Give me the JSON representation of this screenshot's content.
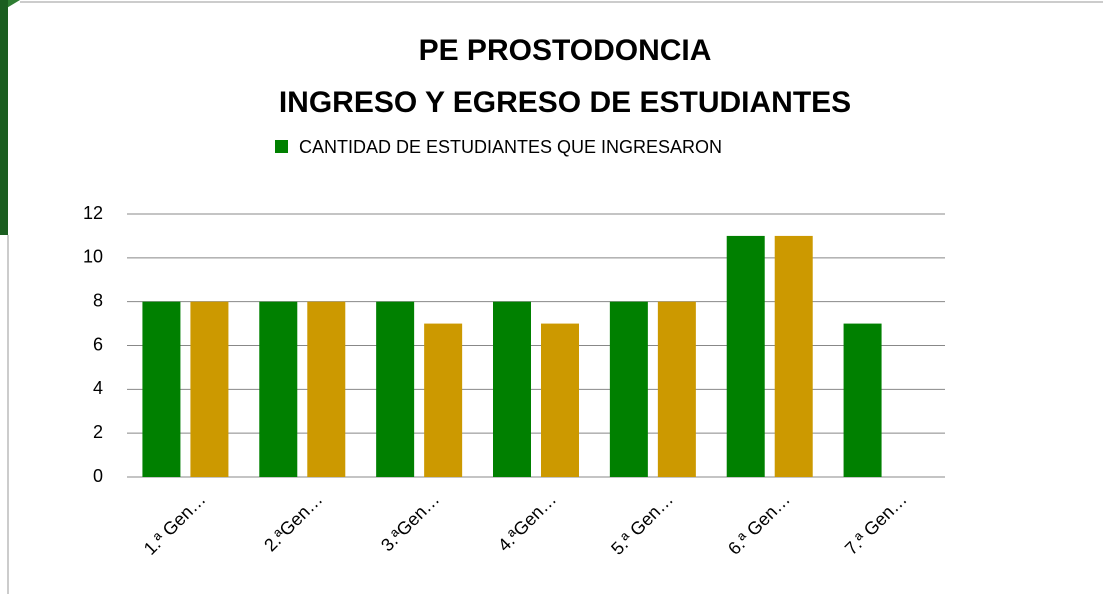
{
  "chart_data": {
    "type": "bar",
    "title": [
      "PE PROSTODONCIA",
      "INGRESO Y EGRESO DE ESTUDIANTES"
    ],
    "categories": [
      "1.ª Gen…",
      "2.ªGen…",
      "3.ªGen…",
      "4.ªGen…",
      "5.ª Gen…",
      "6.ª Gen…",
      "7.ª Gen…"
    ],
    "series": [
      {
        "name": "CANTIDAD DE ESTUDIANTES QUE INGRESARON",
        "color": "#008000",
        "values": [
          8,
          8,
          8,
          8,
          8,
          11,
          7
        ]
      },
      {
        "color": "#cc9900",
        "values": [
          8,
          8,
          7,
          7,
          8,
          11,
          null
        ]
      }
    ],
    "ylim": [
      0,
      12
    ],
    "yticks": [
      0,
      2,
      4,
      6,
      8,
      10,
      12
    ],
    "grid": true,
    "legend": "top"
  }
}
